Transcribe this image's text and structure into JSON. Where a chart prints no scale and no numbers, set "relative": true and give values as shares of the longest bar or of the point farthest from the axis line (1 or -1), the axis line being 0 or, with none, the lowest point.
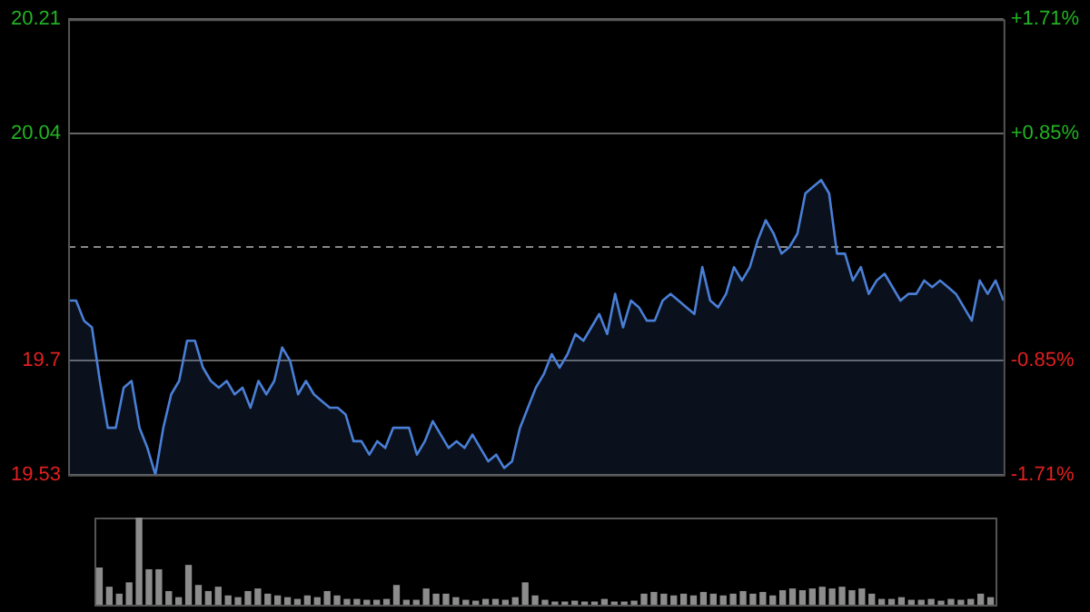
{
  "chart_data": [
    {
      "type": "area",
      "color": "#4a7fd6",
      "categories": [
        null,
        null,
        null,
        null,
        null,
        null,
        null,
        null,
        null,
        null,
        null,
        null,
        null,
        null,
        null,
        null,
        null,
        null,
        null,
        null,
        null,
        null,
        null,
        null,
        null,
        null,
        null,
        null,
        null,
        null,
        null,
        null,
        null,
        null,
        null,
        null,
        null,
        null,
        null,
        null,
        null,
        null,
        null,
        null,
        null,
        null,
        null,
        null,
        null,
        null,
        null,
        null,
        null,
        null,
        null,
        null,
        null,
        null,
        null,
        null,
        null,
        null,
        null,
        null,
        null,
        null,
        null,
        null,
        null,
        null,
        null,
        null,
        null,
        null,
        null,
        null,
        null,
        null,
        null,
        null,
        null,
        null,
        null,
        null,
        null,
        null,
        null,
        null,
        null,
        null,
        null,
        null,
        null,
        null,
        null,
        null,
        null,
        null,
        null,
        null,
        null,
        null,
        null,
        null,
        null,
        null,
        null,
        null,
        null,
        null,
        null,
        null,
        null,
        null,
        null,
        null,
        null,
        null,
        null
      ],
      "values": [
        19.79,
        19.79,
        19.76,
        19.75,
        19.67,
        19.6,
        19.6,
        19.66,
        19.67,
        19.6,
        19.57,
        19.53,
        19.6,
        19.65,
        19.67,
        19.73,
        19.73,
        19.69,
        19.67,
        19.66,
        19.67,
        19.65,
        19.66,
        19.63,
        19.67,
        19.65,
        19.67,
        19.72,
        19.7,
        19.65,
        19.67,
        19.65,
        19.64,
        19.63,
        19.63,
        19.62,
        19.58,
        19.58,
        19.56,
        19.58,
        19.57,
        19.6,
        19.6,
        19.6,
        19.56,
        19.58,
        19.61,
        19.59,
        19.57,
        19.58,
        19.57,
        19.59,
        19.57,
        19.55,
        19.56,
        19.54,
        19.55,
        19.6,
        19.63,
        19.66,
        19.68,
        19.71,
        19.69,
        19.71,
        19.74,
        19.73,
        19.75,
        19.77,
        19.74,
        19.8,
        19.75,
        19.79,
        19.78,
        19.76,
        19.76,
        19.79,
        19.8,
        19.79,
        19.78,
        19.77,
        19.84,
        19.79,
        19.78,
        19.8,
        19.84,
        19.82,
        19.84,
        19.88,
        19.91,
        19.89,
        19.86,
        19.87,
        19.89,
        19.95,
        19.96,
        19.97,
        19.95,
        19.86,
        19.86,
        19.82,
        19.84,
        19.8,
        19.82,
        19.83,
        19.81,
        19.79,
        19.8,
        19.8,
        19.82,
        19.81,
        19.82,
        19.81,
        19.8,
        19.78,
        19.76,
        19.82,
        19.8,
        19.82,
        19.79
      ],
      "ylim": [
        19.53,
        20.21
      ],
      "yticks": [
        19.53,
        19.7,
        20.04,
        20.21
      ],
      "y2lim": [
        -1.71,
        1.71
      ],
      "y2ticks": [
        {
          "value": -1.71,
          "label": "-1.71%"
        },
        {
          "value": -0.85,
          "label": "-0.85%"
        },
        {
          "value": 0.85,
          "label": "+0.85%"
        },
        {
          "value": 1.71,
          "label": "+1.71%"
        }
      ],
      "ref_lines": [
        {
          "axis": "y",
          "value": 19.87,
          "color": "#888888",
          "line_style": "dashed"
        }
      ],
      "grid": "y",
      "tick_labels": "y"
    },
    {
      "type": "bar",
      "relative": true,
      "color": "#8c8c8c",
      "tick_labels": false,
      "categories": [
        null,
        null,
        null,
        null,
        null,
        null,
        null,
        null,
        null,
        null,
        null,
        null,
        null,
        null,
        null,
        null,
        null,
        null,
        null,
        null,
        null,
        null,
        null,
        null,
        null,
        null,
        null,
        null,
        null,
        null,
        null,
        null,
        null,
        null,
        null,
        null,
        null,
        null,
        null,
        null,
        null,
        null,
        null,
        null,
        null,
        null,
        null,
        null,
        null,
        null,
        null,
        null,
        null,
        null,
        null,
        null,
        null,
        null,
        null,
        null,
        null,
        null,
        null,
        null,
        null,
        null,
        null,
        null,
        null,
        null,
        null,
        null,
        null,
        null,
        null,
        null,
        null,
        null,
        null,
        null,
        null,
        null,
        null,
        null,
        null,
        null,
        null,
        null,
        null,
        null,
        null
      ],
      "values": [
        0.42,
        0.2,
        0.12,
        0.25,
        1.0,
        0.4,
        0.4,
        0.15,
        0.08,
        0.45,
        0.22,
        0.15,
        0.2,
        0.1,
        0.08,
        0.15,
        0.18,
        0.12,
        0.1,
        0.08,
        0.06,
        0.1,
        0.08,
        0.15,
        0.1,
        0.06,
        0.06,
        0.05,
        0.05,
        0.06,
        0.22,
        0.05,
        0.05,
        0.18,
        0.12,
        0.12,
        0.08,
        0.05,
        0.04,
        0.06,
        0.06,
        0.05,
        0.08,
        0.25,
        0.1,
        0.05,
        0.03,
        0.03,
        0.04,
        0.03,
        0.03,
        0.06,
        0.03,
        0.03,
        0.04,
        0.12,
        0.14,
        0.12,
        0.1,
        0.12,
        0.1,
        0.14,
        0.12,
        0.1,
        0.12,
        0.15,
        0.12,
        0.14,
        0.1,
        0.16,
        0.18,
        0.16,
        0.18,
        0.2,
        0.18,
        0.2,
        0.16,
        0.18,
        0.12,
        0.06,
        0.06,
        0.08,
        0.05,
        0.05,
        0.06,
        0.04,
        0.06,
        0.05,
        0.06,
        0.12,
        0.08
      ]
    }
  ]
}
